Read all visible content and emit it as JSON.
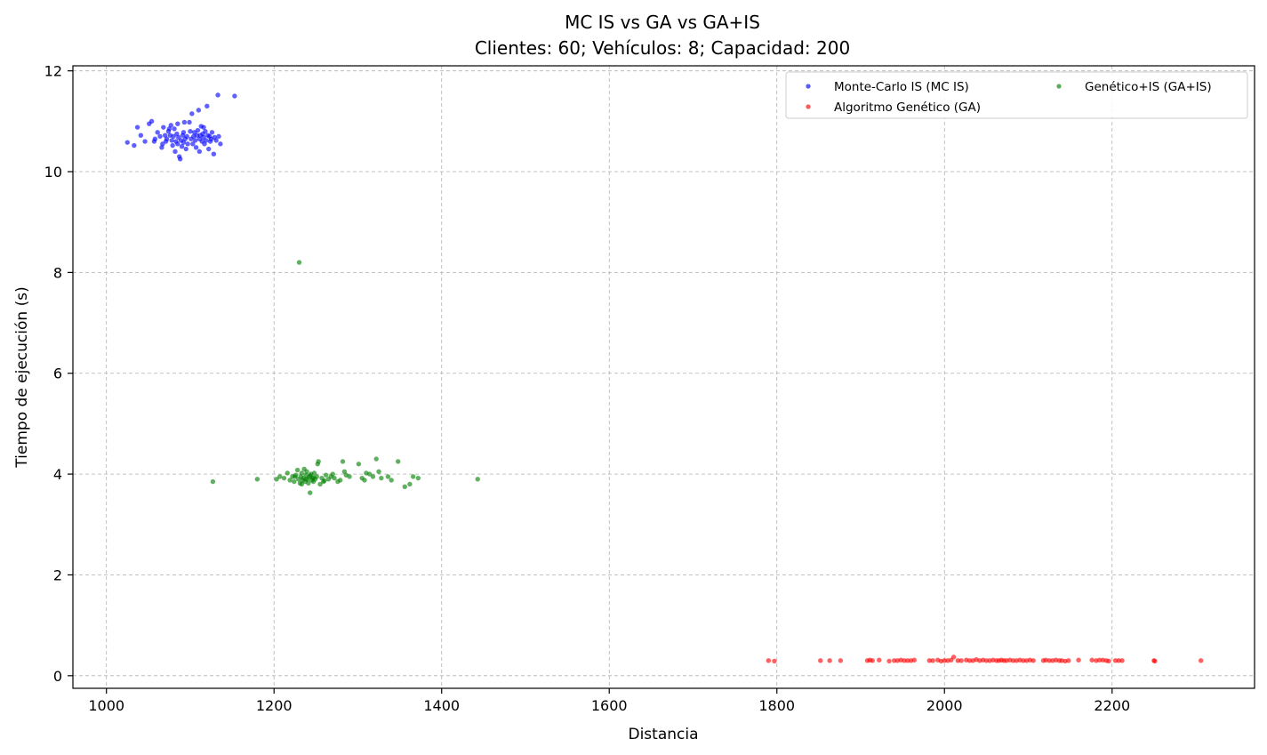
{
  "chart_data": {
    "type": "scatter",
    "title": "MC IS vs GA vs GA+IS",
    "subtitle": "Clientes: 60; Vehículos: 8; Capacidad: 200",
    "xlabel": "Distancia",
    "ylabel": "Tiempo de ejecución (s)",
    "xlim": [
      960,
      2370
    ],
    "ylim": [
      -0.25,
      12.1
    ],
    "xticks": [
      1000,
      1200,
      1400,
      1600,
      1800,
      2000,
      2200
    ],
    "yticks": [
      0,
      2,
      4,
      6,
      8,
      10,
      12
    ],
    "grid": true,
    "legend_position": "top-right",
    "series": [
      {
        "name": "Monte-Carlo IS (MC IS)",
        "color": "#0000ff",
        "points": [
          [
            1025,
            10.58
          ],
          [
            1033,
            10.52
          ],
          [
            1037,
            10.88
          ],
          [
            1041,
            10.72
          ],
          [
            1046,
            10.6
          ],
          [
            1051,
            10.95
          ],
          [
            1054,
            11.0
          ],
          [
            1057,
            10.6
          ],
          [
            1061,
            10.78
          ],
          [
            1064,
            10.7
          ],
          [
            1067,
            10.55
          ],
          [
            1068,
            10.88
          ],
          [
            1070,
            10.72
          ],
          [
            1072,
            10.65
          ],
          [
            1074,
            10.8
          ],
          [
            1076,
            10.72
          ],
          [
            1077,
            10.92
          ],
          [
            1078,
            10.62
          ],
          [
            1079,
            10.52
          ],
          [
            1080,
            10.7
          ],
          [
            1081,
            10.85
          ],
          [
            1082,
            10.4
          ],
          [
            1083,
            10.6
          ],
          [
            1084,
            10.75
          ],
          [
            1085,
            10.55
          ],
          [
            1086,
            10.68
          ],
          [
            1087,
            10.3
          ],
          [
            1088,
            10.25
          ],
          [
            1089,
            10.62
          ],
          [
            1090,
            10.5
          ],
          [
            1091,
            10.72
          ],
          [
            1092,
            10.58
          ],
          [
            1093,
            10.98
          ],
          [
            1094,
            10.65
          ],
          [
            1095,
            10.45
          ],
          [
            1096,
            10.7
          ],
          [
            1097,
            10.55
          ],
          [
            1099,
            10.98
          ],
          [
            1100,
            10.8
          ],
          [
            1101,
            10.65
          ],
          [
            1102,
            11.15
          ],
          [
            1104,
            10.7
          ],
          [
            1105,
            10.78
          ],
          [
            1106,
            10.62
          ],
          [
            1107,
            10.48
          ],
          [
            1108,
            10.72
          ],
          [
            1109,
            10.82
          ],
          [
            1110,
            11.22
          ],
          [
            1111,
            10.65
          ],
          [
            1112,
            10.72
          ],
          [
            1113,
            10.9
          ],
          [
            1114,
            10.6
          ],
          [
            1115,
            10.75
          ],
          [
            1116,
            10.68
          ],
          [
            1117,
            10.55
          ],
          [
            1118,
            10.8
          ],
          [
            1119,
            10.62
          ],
          [
            1120,
            11.3
          ],
          [
            1121,
            10.72
          ],
          [
            1122,
            10.45
          ],
          [
            1123,
            10.7
          ],
          [
            1124,
            10.6
          ],
          [
            1126,
            10.78
          ],
          [
            1128,
            10.35
          ],
          [
            1129,
            10.68
          ],
          [
            1131,
            10.62
          ],
          [
            1133,
            11.52
          ],
          [
            1134,
            10.7
          ],
          [
            1136,
            10.55
          ],
          [
            1153,
            11.5
          ],
          [
            1058,
            10.65
          ],
          [
            1066,
            10.48
          ],
          [
            1071,
            10.6
          ],
          [
            1075,
            10.85
          ],
          [
            1085,
            10.95
          ],
          [
            1092,
            10.78
          ],
          [
            1103,
            10.55
          ],
          [
            1111,
            10.4
          ],
          [
            1116,
            10.88
          ],
          [
            1125,
            10.65
          ]
        ]
      },
      {
        "name": "Algoritmo Genético (GA)",
        "color": "#ff0000",
        "points": [
          [
            1790,
            0.3
          ],
          [
            1797,
            0.29
          ],
          [
            1852,
            0.3
          ],
          [
            1863,
            0.3
          ],
          [
            1876,
            0.3
          ],
          [
            1908,
            0.3
          ],
          [
            1911,
            0.31
          ],
          [
            1914,
            0.3
          ],
          [
            1922,
            0.31
          ],
          [
            1934,
            0.29
          ],
          [
            1940,
            0.3
          ],
          [
            1944,
            0.3
          ],
          [
            1948,
            0.31
          ],
          [
            1952,
            0.3
          ],
          [
            1956,
            0.3
          ],
          [
            1960,
            0.3
          ],
          [
            1964,
            0.31
          ],
          [
            1982,
            0.3
          ],
          [
            1986,
            0.3
          ],
          [
            1992,
            0.31
          ],
          [
            1996,
            0.29
          ],
          [
            2000,
            0.3
          ],
          [
            2004,
            0.3
          ],
          [
            2008,
            0.31
          ],
          [
            2011,
            0.37
          ],
          [
            2016,
            0.3
          ],
          [
            2020,
            0.3
          ],
          [
            2026,
            0.31
          ],
          [
            2030,
            0.3
          ],
          [
            2034,
            0.3
          ],
          [
            2038,
            0.32
          ],
          [
            2042,
            0.3
          ],
          [
            2046,
            0.31
          ],
          [
            2050,
            0.3
          ],
          [
            2054,
            0.3
          ],
          [
            2058,
            0.31
          ],
          [
            2062,
            0.3
          ],
          [
            2065,
            0.3
          ],
          [
            2068,
            0.31
          ],
          [
            2071,
            0.3
          ],
          [
            2074,
            0.3
          ],
          [
            2078,
            0.31
          ],
          [
            2082,
            0.3
          ],
          [
            2086,
            0.3
          ],
          [
            2090,
            0.31
          ],
          [
            2094,
            0.3
          ],
          [
            2098,
            0.3
          ],
          [
            2102,
            0.31
          ],
          [
            2106,
            0.3
          ],
          [
            2118,
            0.3
          ],
          [
            2121,
            0.31
          ],
          [
            2125,
            0.3
          ],
          [
            2129,
            0.3
          ],
          [
            2133,
            0.31
          ],
          [
            2137,
            0.3
          ],
          [
            2140,
            0.3
          ],
          [
            2144,
            0.29
          ],
          [
            2148,
            0.3
          ],
          [
            2160,
            0.31
          ],
          [
            2176,
            0.31
          ],
          [
            2181,
            0.3
          ],
          [
            2185,
            0.31
          ],
          [
            2189,
            0.31
          ],
          [
            2193,
            0.3
          ],
          [
            2196,
            0.29
          ],
          [
            2204,
            0.3
          ],
          [
            2208,
            0.3
          ],
          [
            2212,
            0.3
          ],
          [
            2250,
            0.3
          ],
          [
            2251,
            0.29
          ],
          [
            2306,
            0.3
          ]
        ]
      },
      {
        "name": "Genético+IS (GA+IS)",
        "color": "#008000",
        "points": [
          [
            1127,
            3.85
          ],
          [
            1180,
            3.9
          ],
          [
            1203,
            3.9
          ],
          [
            1207,
            3.95
          ],
          [
            1212,
            3.92
          ],
          [
            1216,
            4.02
          ],
          [
            1219,
            3.88
          ],
          [
            1222,
            3.95
          ],
          [
            1224,
            3.85
          ],
          [
            1226,
            3.98
          ],
          [
            1228,
            4.08
          ],
          [
            1229,
            3.9
          ],
          [
            1230,
            8.2
          ],
          [
            1231,
            3.82
          ],
          [
            1232,
            3.95
          ],
          [
            1233,
            4.02
          ],
          [
            1234,
            3.88
          ],
          [
            1235,
            3.92
          ],
          [
            1236,
            4.1
          ],
          [
            1237,
            3.85
          ],
          [
            1238,
            3.98
          ],
          [
            1239,
            4.05
          ],
          [
            1240,
            3.9
          ],
          [
            1241,
            3.82
          ],
          [
            1242,
            3.95
          ],
          [
            1243,
            3.63
          ],
          [
            1244,
            4.0
          ],
          [
            1245,
            3.88
          ],
          [
            1246,
            3.92
          ],
          [
            1247,
            3.85
          ],
          [
            1248,
            4.02
          ],
          [
            1249,
            3.9
          ],
          [
            1251,
            3.95
          ],
          [
            1252,
            4.2
          ],
          [
            1253,
            4.25
          ],
          [
            1255,
            3.8
          ],
          [
            1257,
            3.92
          ],
          [
            1259,
            3.85
          ],
          [
            1262,
            3.98
          ],
          [
            1265,
            3.9
          ],
          [
            1268,
            3.95
          ],
          [
            1272,
            3.92
          ],
          [
            1276,
            3.85
          ],
          [
            1279,
            3.88
          ],
          [
            1282,
            4.25
          ],
          [
            1284,
            4.05
          ],
          [
            1286,
            3.98
          ],
          [
            1290,
            3.95
          ],
          [
            1301,
            4.2
          ],
          [
            1305,
            3.92
          ],
          [
            1308,
            3.88
          ],
          [
            1310,
            4.02
          ],
          [
            1314,
            4.0
          ],
          [
            1318,
            3.95
          ],
          [
            1322,
            4.3
          ],
          [
            1325,
            4.05
          ],
          [
            1328,
            3.92
          ],
          [
            1336,
            3.95
          ],
          [
            1340,
            3.88
          ],
          [
            1348,
            4.25
          ],
          [
            1356,
            3.75
          ],
          [
            1362,
            3.8
          ],
          [
            1366,
            3.95
          ],
          [
            1372,
            3.92
          ],
          [
            1443,
            3.9
          ],
          [
            1225,
            3.95
          ],
          [
            1233,
            3.8
          ],
          [
            1238,
            3.9
          ],
          [
            1243,
            3.97
          ],
          [
            1247,
            3.93
          ],
          [
            1260,
            3.87
          ],
          [
            1270,
            4.0
          ]
        ]
      }
    ]
  }
}
